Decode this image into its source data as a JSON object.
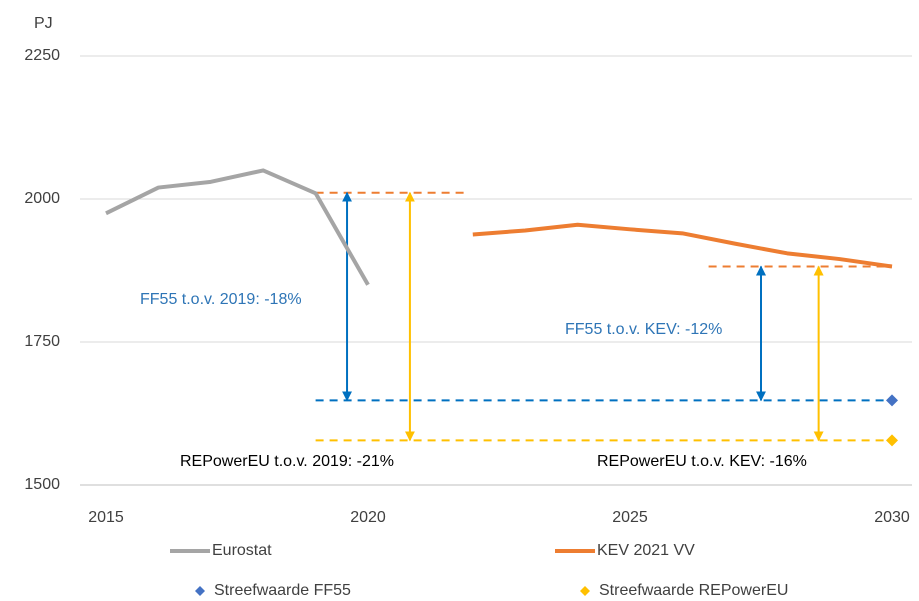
{
  "chart_data": {
    "type": "line",
    "y_label": "PJ",
    "xlim": [
      2015,
      2030
    ],
    "xticks": [
      2015,
      2020,
      2025,
      2030
    ],
    "ylim": [
      1500,
      2250
    ],
    "yticks": [
      1500,
      1750,
      2000,
      2250
    ],
    "grid": true,
    "series": [
      {
        "name": "Eurostat",
        "kind": "line",
        "color": "#a5a5a5",
        "x": [
          2015,
          2016,
          2017,
          2018,
          2019,
          2020
        ],
        "values": [
          1975,
          2020,
          2030,
          2050,
          2010,
          1850
        ]
      },
      {
        "name": "KEV 2021 VV",
        "kind": "line",
        "color": "#ed7d31",
        "x": [
          2022,
          2023,
          2024,
          2025,
          2026,
          2027,
          2028,
          2029,
          2030
        ],
        "values": [
          1938,
          1945,
          1955,
          1947,
          1940,
          1922,
          1905,
          1895,
          1882
        ]
      },
      {
        "name": "Streefwaarde FF55",
        "kind": "scatter",
        "color": "#4472c4",
        "x": [
          2030
        ],
        "values": [
          1648
        ]
      },
      {
        "name": "Streefwaarde REPowerEU",
        "kind": "scatter",
        "color": "#ffc000",
        "x": [
          2030
        ],
        "values": [
          1578
        ]
      }
    ],
    "reference_lines": [
      {
        "y": 2011,
        "x": [
          2019,
          2021.9
        ],
        "color": "#ed7d31"
      },
      {
        "y": 1882,
        "x": [
          2026.5,
          2030
        ],
        "color": "#ed7d31"
      },
      {
        "y": 1648,
        "x": [
          2019,
          2030
        ],
        "color": "#0070c0"
      },
      {
        "y": 1578,
        "x": [
          2019,
          2030
        ],
        "color": "#ffc000"
      }
    ],
    "arrows": [
      {
        "x": 2019.6,
        "y": [
          2011,
          1648
        ],
        "color": "#0070c0"
      },
      {
        "x": 2020.8,
        "y": [
          2011,
          1578
        ],
        "color": "#ffc000"
      },
      {
        "x": 2027.5,
        "y": [
          1882,
          1648
        ],
        "color": "#0070c0"
      },
      {
        "x": 2028.6,
        "y": [
          1882,
          1578
        ],
        "color": "#ffc000"
      }
    ],
    "annotations": [
      {
        "text": "FF55 t.o.v. 2019: -18%",
        "color": "#2e75b6"
      },
      {
        "text": "FF55 t.o.v. KEV: -12%",
        "color": "#2e75b6"
      },
      {
        "text": "REPowerEU t.o.v. 2019: -21%",
        "color": "#000000"
      },
      {
        "text": "REPowerEU t.o.v. KEV: -16%",
        "color": "#000000"
      }
    ]
  }
}
